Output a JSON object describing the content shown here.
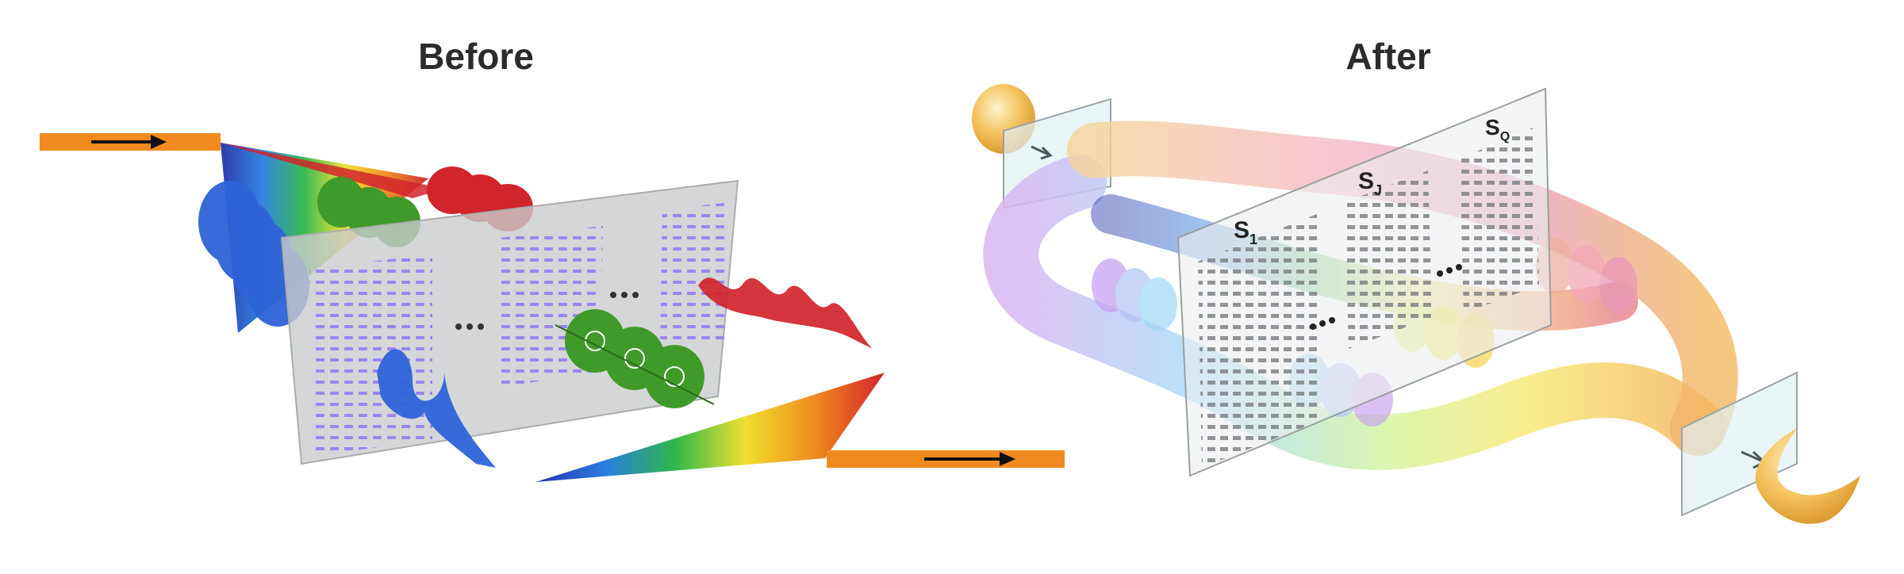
{
  "panels": {
    "before": {
      "title": "Before"
    },
    "after": {
      "title": "After",
      "surfaces": [
        {
          "name": "S",
          "sub": "1"
        },
        {
          "name": "S",
          "sub": "J"
        },
        {
          "name": "S",
          "sub": "Q"
        }
      ]
    }
  },
  "colors": {
    "beam_orange": "#f08a1e",
    "metasurface_plate": "#c9cccd",
    "nanopillar_purple": "#9b86f2",
    "nanopillar_gray": "#8a8e90",
    "wave_red": "#d1242b",
    "wave_green": "#3f9a2a",
    "wave_blue": "#2f63d8",
    "output_gold": "#f1b64a"
  },
  "icons": [
    "arrow-right-icon",
    "ellipsis-icon"
  ]
}
